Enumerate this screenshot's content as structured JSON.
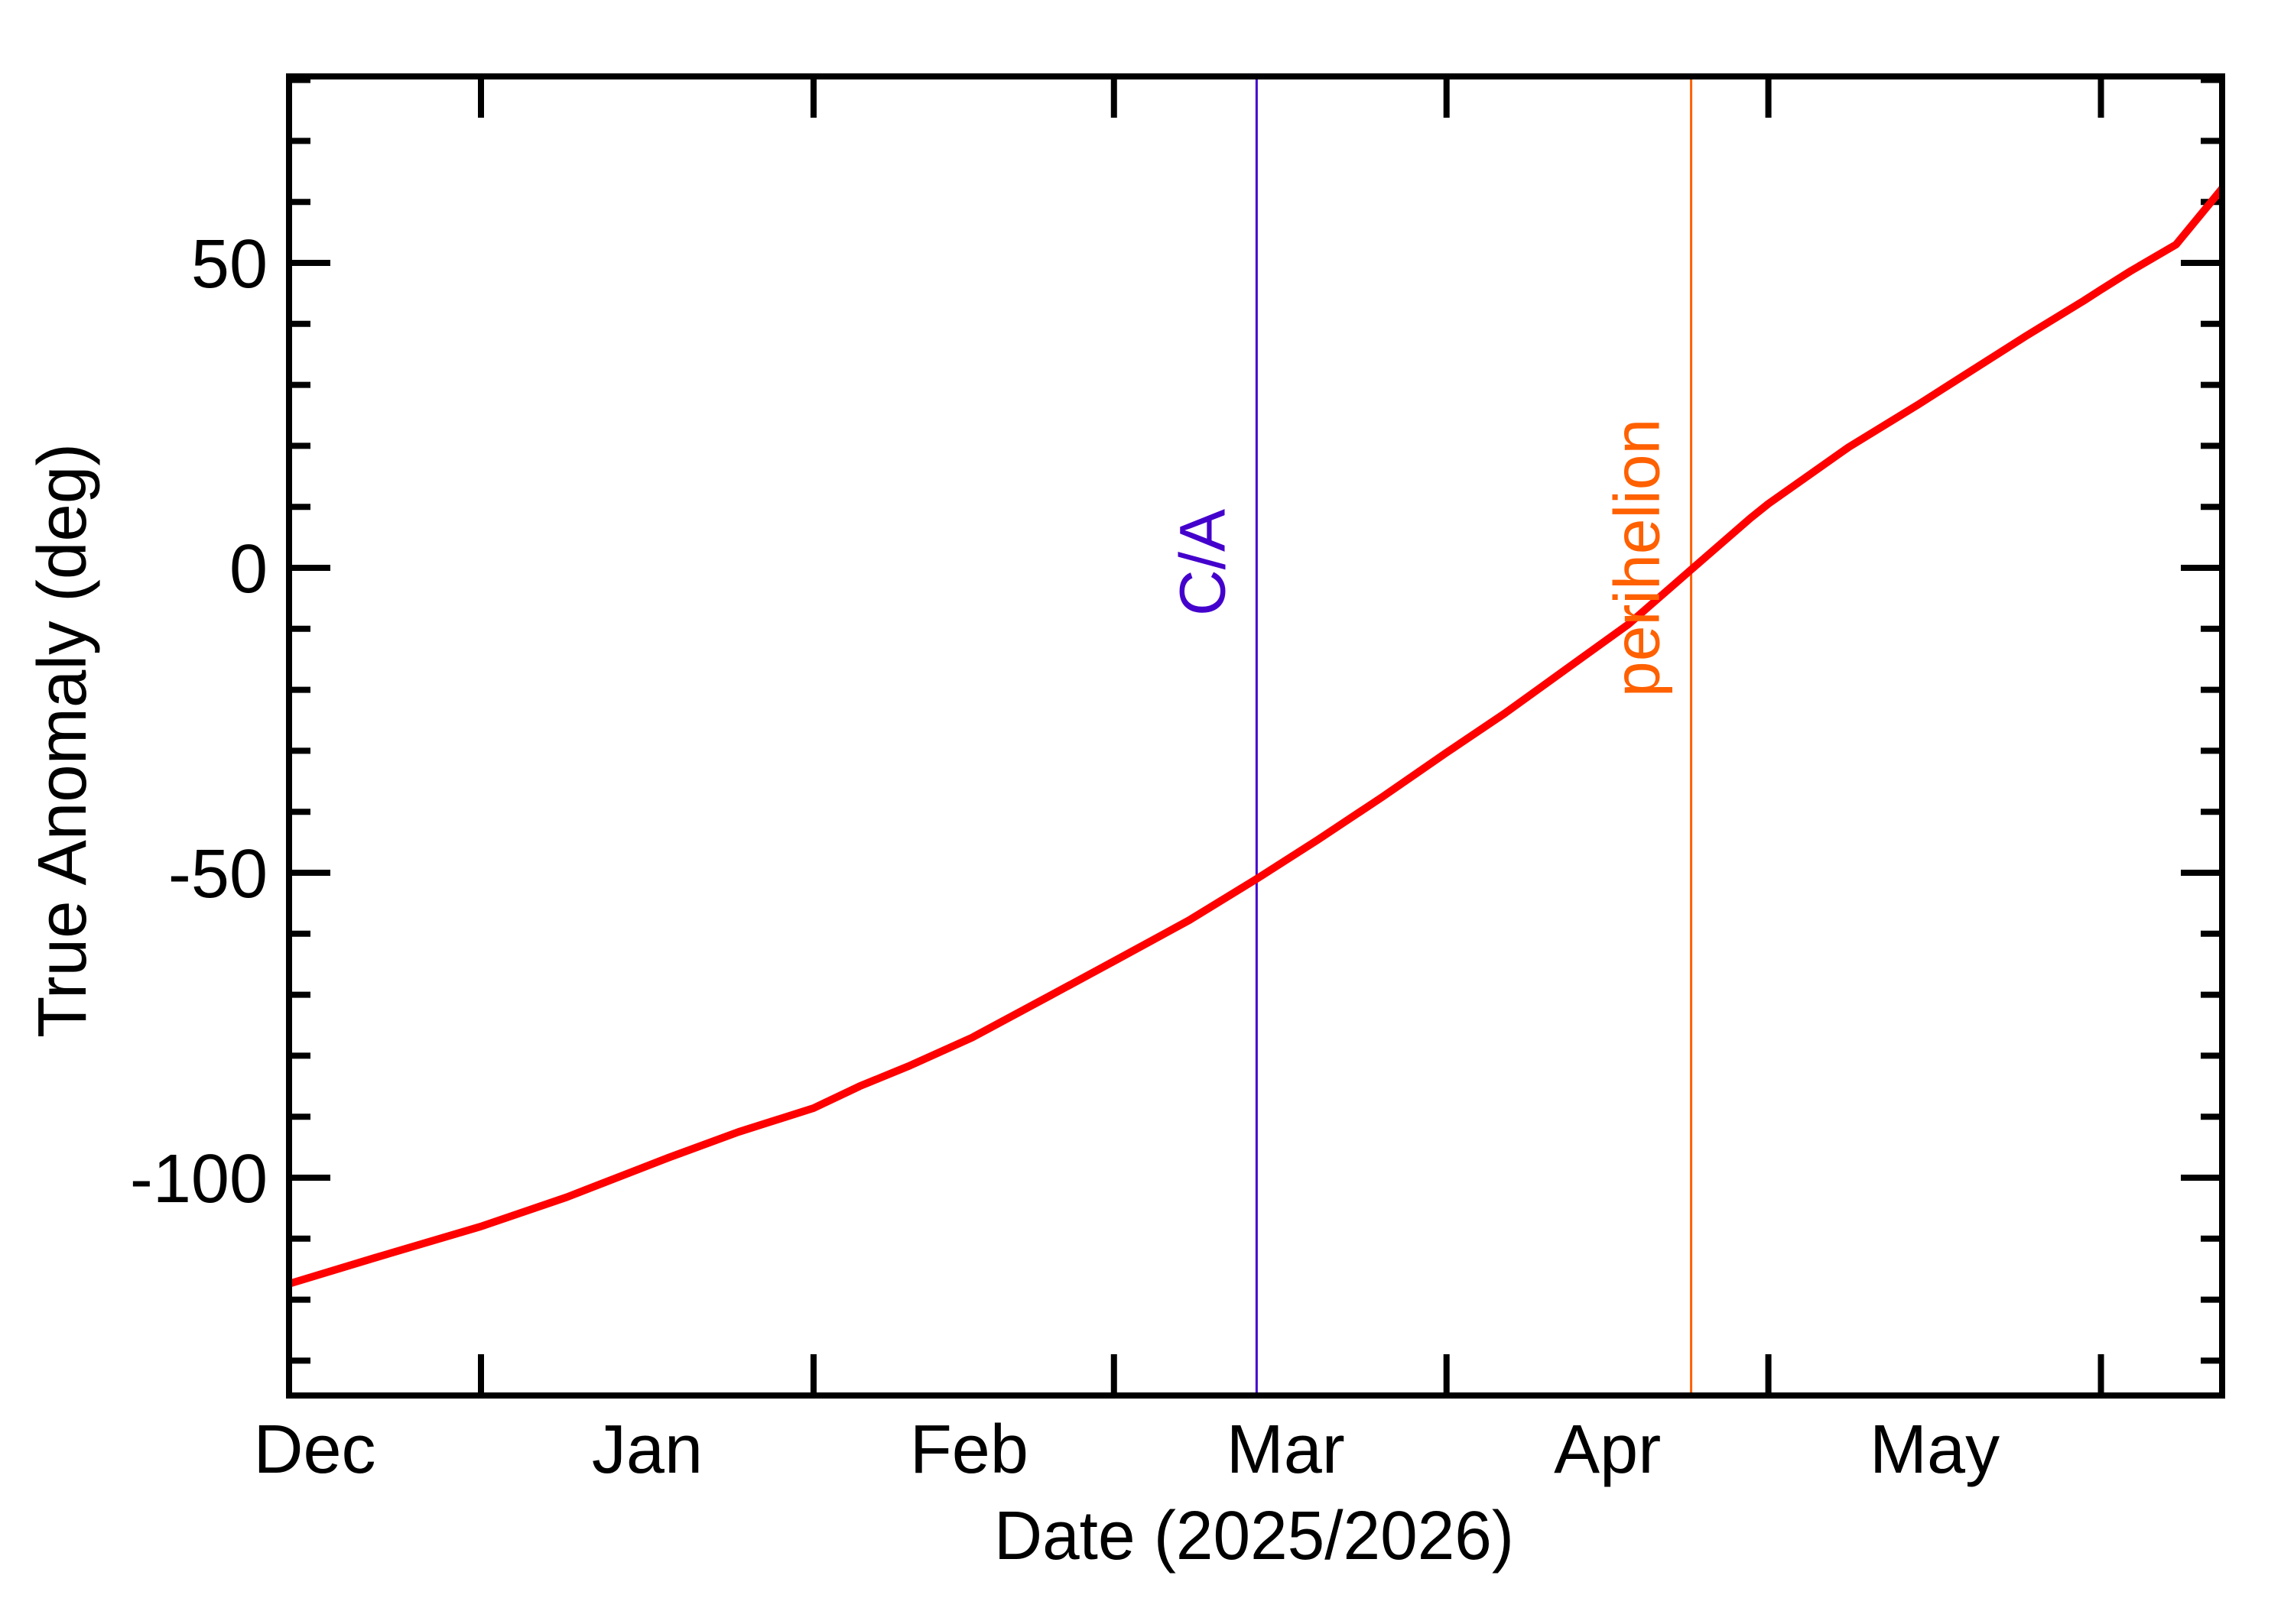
{
  "chart_data": {
    "type": "line",
    "title": "",
    "xlabel": "Date (2025/2026)",
    "ylabel": "True Anomaly (deg)",
    "x_unit": "days relative to 2026-01-01",
    "xlim": [
      -17.9,
      162.3
    ],
    "ylim": [
      -135.7,
      80.6
    ],
    "grid": false,
    "legend": null,
    "x_month_ticks": [
      {
        "day": 0,
        "label": ""
      },
      {
        "day": 31,
        "label": ""
      },
      {
        "day": 59,
        "label": ""
      },
      {
        "day": 90,
        "label": ""
      },
      {
        "day": 120,
        "label": ""
      },
      {
        "day": 151,
        "label": ""
      }
    ],
    "x_month_labels": [
      {
        "day": -15.5,
        "label": "Dec"
      },
      {
        "day": 15.5,
        "label": "Jan"
      },
      {
        "day": 45.5,
        "label": "Feb"
      },
      {
        "day": 75,
        "label": "Mar"
      },
      {
        "day": 105,
        "label": "Apr"
      },
      {
        "day": 135.5,
        "label": "May"
      }
    ],
    "y_major_ticks": [
      50,
      0,
      -50,
      -100
    ],
    "y_tick_labels": [
      "50",
      "0",
      "-50",
      "-100"
    ],
    "y_minor_step": 10,
    "series": [
      {
        "name": "True Anomaly",
        "color": "#ff0000",
        "x": [
          -17.9,
          -10,
          0,
          8,
          17.5,
          24,
          31,
          35.3,
          40,
          45.8,
          53,
          59,
          66,
          72.3,
          78,
          84,
          90,
          95.4,
          101,
          107,
          112.8,
          118.3,
          120,
          127.5,
          134,
          139,
          144,
          149.4,
          151,
          153.8,
          158,
          162.3
        ],
        "y": [
          -117.4,
          -113.2,
          -108.0,
          -103.2,
          -96.7,
          -92.5,
          -88.6,
          -85.0,
          -81.6,
          -77.0,
          -70.2,
          -64.5,
          -57.8,
          -51.0,
          -44.6,
          -37.6,
          -30.3,
          -23.9,
          -16.8,
          -9.2,
          -0.3,
          8.1,
          10.5,
          19.8,
          26.8,
          32.4,
          38.0,
          43.8,
          45.6,
          48.7,
          53.0,
          62.2
        ]
      }
    ],
    "markers": [
      {
        "label": "C/A",
        "day": 72.3,
        "date": "Mar 14",
        "color": "#4400cc"
      },
      {
        "label": "perihelion",
        "day": 112.8,
        "date": "Apr 23",
        "color": "#ff6000"
      }
    ]
  }
}
